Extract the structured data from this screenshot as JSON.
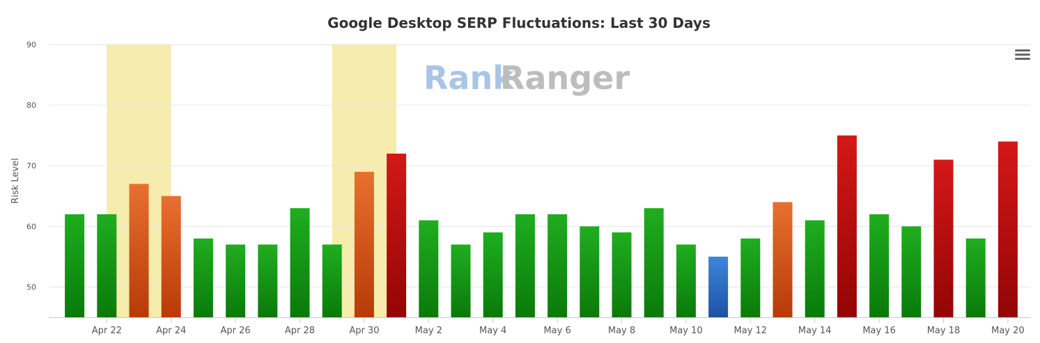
{
  "chart_data": {
    "type": "bar",
    "title": "Google Desktop SERP Fluctuations: Last 30 Days",
    "ylabel": "Risk Level",
    "xlabel": "",
    "ylim": [
      45,
      90
    ],
    "yticks": [
      50,
      60,
      70,
      80,
      90
    ],
    "grid": true,
    "legend": "none",
    "categories": [
      "Apr 21",
      "Apr 22",
      "Apr 23",
      "Apr 24",
      "Apr 25",
      "Apr 26",
      "Apr 27",
      "Apr 28",
      "Apr 29",
      "Apr 30",
      "May 1",
      "May 2",
      "May 3",
      "May 4",
      "May 5",
      "May 6",
      "May 7",
      "May 8",
      "May 9",
      "May 10",
      "May 11",
      "May 12",
      "May 13",
      "May 14",
      "May 15",
      "May 16",
      "May 17",
      "May 18",
      "May 19",
      "May 20"
    ],
    "xtick_labels": [
      "Apr 22",
      "Apr 24",
      "Apr 26",
      "Apr 28",
      "Apr 30",
      "May 2",
      "May 4",
      "May 6",
      "May 8",
      "May 10",
      "May 12",
      "May 14",
      "May 16",
      "May 18",
      "May 20"
    ],
    "values": [
      62,
      62,
      67,
      65,
      58,
      57,
      57,
      63,
      57,
      69,
      72,
      61,
      57,
      59,
      62,
      62,
      60,
      59,
      63,
      57,
      55,
      58,
      64,
      61,
      75,
      62,
      60,
      71,
      58,
      74
    ],
    "levels": [
      "green",
      "green",
      "orange",
      "orange",
      "green",
      "green",
      "green",
      "green",
      "green",
      "orange",
      "red",
      "green",
      "green",
      "green",
      "green",
      "green",
      "green",
      "green",
      "green",
      "green",
      "blue",
      "green",
      "orange",
      "green",
      "red",
      "green",
      "green",
      "red",
      "green",
      "red"
    ],
    "highlighted_ranges": [
      [
        "Apr 22",
        "Apr 24"
      ],
      [
        "Apr 29",
        "May 1"
      ]
    ],
    "colors": {
      "green": [
        "#1fae1f",
        "#0a7a0a"
      ],
      "orange": [
        "#e8702e",
        "#b73a08"
      ],
      "red": [
        "#d41818",
        "#930505"
      ],
      "blue": [
        "#3f86d8",
        "#1d52a6"
      ],
      "highlight": "#f5ecae"
    }
  },
  "watermark": {
    "part1": "Rank",
    "part2": "Ranger"
  },
  "menu": {
    "icon": "hamburger-menu-icon"
  }
}
